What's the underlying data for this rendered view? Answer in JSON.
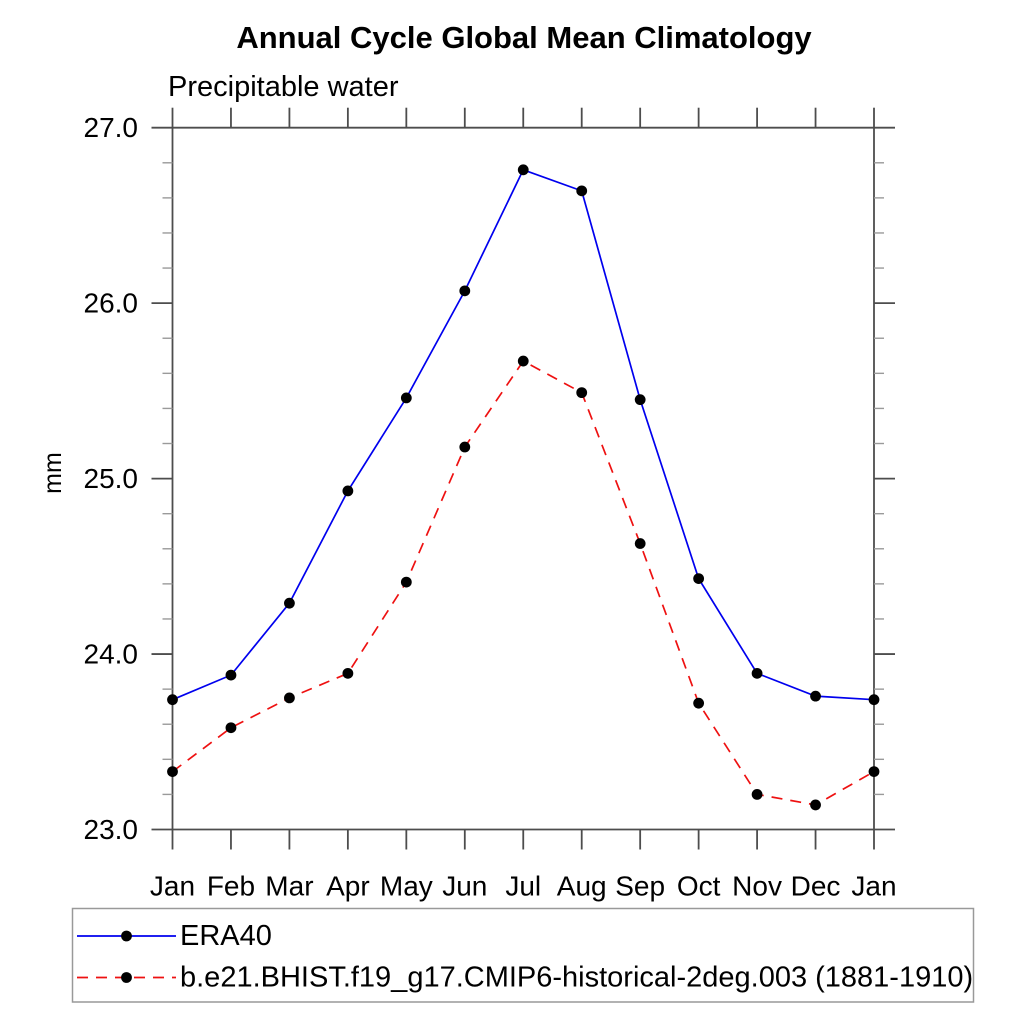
{
  "title": "Annual Cycle Global Mean Climatology",
  "subtitle": "Precipitable water",
  "chart_data": {
    "type": "line",
    "title": "Annual Cycle Global Mean Climatology",
    "subtitle": "Precipitable water",
    "xlabel": "",
    "ylabel": "mm",
    "categories": [
      "Jan",
      "Feb",
      "Mar",
      "Apr",
      "May",
      "Jun",
      "Jul",
      "Aug",
      "Sep",
      "Oct",
      "Nov",
      "Dec",
      "Jan"
    ],
    "ylim": [
      23.0,
      27.0
    ],
    "ytick_major_step": 1.0,
    "ytick_minor_step": 0.2,
    "ytick_labels": [
      "23.0",
      "24.0",
      "25.0",
      "26.0",
      "27.0"
    ],
    "grid": false,
    "legend_position": "bottom",
    "series": [
      {
        "name": "ERA40",
        "color": "#0000ee",
        "line_style": "solid",
        "marker": "circle-icon",
        "marker_color": "#000000",
        "values": [
          23.74,
          23.88,
          24.29,
          24.93,
          25.46,
          26.07,
          26.76,
          26.64,
          25.45,
          24.43,
          23.89,
          23.76,
          23.74
        ]
      },
      {
        "name": "b.e21.BHIST.f19_g17.CMIP6-historical-2deg.003 (1881-1910)",
        "color": "#ee1111",
        "line_style": "dashed",
        "marker": "circle-icon",
        "marker_color": "#000000",
        "values": [
          23.33,
          23.58,
          23.75,
          23.89,
          24.41,
          25.18,
          25.67,
          25.49,
          24.63,
          23.72,
          23.2,
          23.14,
          23.33
        ]
      }
    ]
  },
  "colors": {
    "frame": "#4d4d4d",
    "major_tick": "#4d4d4d",
    "minor_tick": "#9a9a9a",
    "text": "#000000",
    "legend_border": "#999999",
    "background": "#ffffff"
  }
}
